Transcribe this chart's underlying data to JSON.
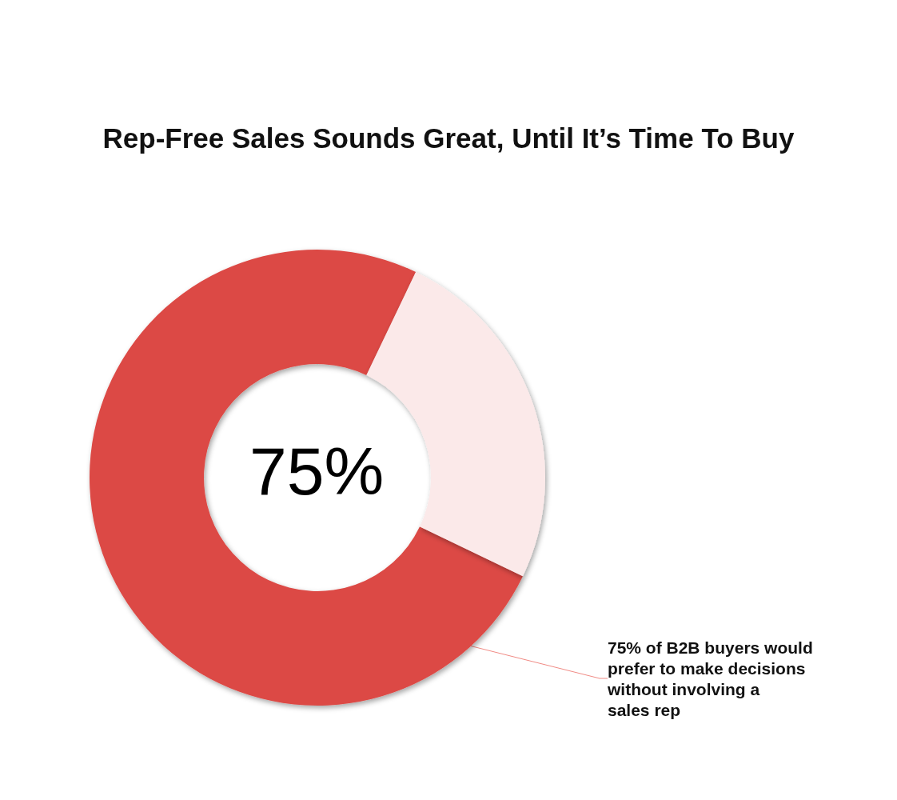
{
  "chart_data": {
    "type": "donut",
    "title": "Rep-Free Sales Sounds Great, Until It’s Time To Buy",
    "categories": [
      "75% of B2B buyers would prefer to make decisions without involving a sales rep",
      null
    ],
    "values": [
      75,
      25
    ],
    "colors": [
      "#dc4a45",
      "#fbe9e9"
    ],
    "annotations": [
      "75%"
    ],
    "legend": false
  }
}
